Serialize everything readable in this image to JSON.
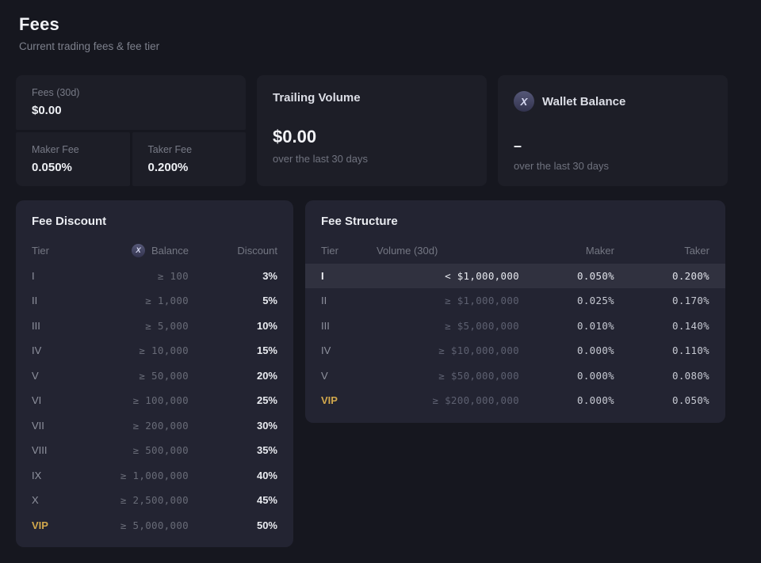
{
  "page": {
    "title": "Fees",
    "subtitle": "Current trading fees & fee tier"
  },
  "stats": {
    "fees_30d": {
      "label": "Fees (30d)",
      "value": "$0.00"
    },
    "maker_fee": {
      "label": "Maker Fee",
      "value": "0.050%"
    },
    "taker_fee": {
      "label": "Taker Fee",
      "value": "0.200%"
    },
    "trailing_volume": {
      "label": "Trailing Volume",
      "value": "$0.00",
      "caption": "over the last 30 days"
    },
    "wallet_balance": {
      "label": "Wallet Balance",
      "icon": "x-token-icon",
      "icon_glyph": "X",
      "value": "–",
      "caption": "over the last 30 days"
    }
  },
  "fee_discount": {
    "title": "Fee Discount",
    "columns": {
      "tier": "Tier",
      "balance": "Balance",
      "balance_icon_glyph": "X",
      "discount": "Discount"
    },
    "rows": [
      {
        "tier": "I",
        "balance": "≥ 100",
        "discount": "3%"
      },
      {
        "tier": "II",
        "balance": "≥ 1,000",
        "discount": "5%"
      },
      {
        "tier": "III",
        "balance": "≥ 5,000",
        "discount": "10%"
      },
      {
        "tier": "IV",
        "balance": "≥ 10,000",
        "discount": "15%"
      },
      {
        "tier": "V",
        "balance": "≥ 50,000",
        "discount": "20%"
      },
      {
        "tier": "VI",
        "balance": "≥ 100,000",
        "discount": "25%"
      },
      {
        "tier": "VII",
        "balance": "≥ 200,000",
        "discount": "30%"
      },
      {
        "tier": "VIII",
        "balance": "≥ 500,000",
        "discount": "35%"
      },
      {
        "tier": "IX",
        "balance": "≥ 1,000,000",
        "discount": "40%"
      },
      {
        "tier": "X",
        "balance": "≥ 2,500,000",
        "discount": "45%"
      },
      {
        "tier": "VIP",
        "balance": "≥ 5,000,000",
        "discount": "50%"
      }
    ]
  },
  "fee_structure": {
    "title": "Fee Structure",
    "columns": {
      "tier": "Tier",
      "volume": "Volume (30d)",
      "maker": "Maker",
      "taker": "Taker"
    },
    "rows": [
      {
        "tier": "I",
        "volume": "< $1,000,000",
        "maker": "0.050%",
        "taker": "0.200%",
        "current": true
      },
      {
        "tier": "II",
        "volume": "≥ $1,000,000",
        "maker": "0.025%",
        "taker": "0.170%"
      },
      {
        "tier": "III",
        "volume": "≥ $5,000,000",
        "maker": "0.010%",
        "taker": "0.140%"
      },
      {
        "tier": "IV",
        "volume": "≥ $10,000,000",
        "maker": "0.000%",
        "taker": "0.110%"
      },
      {
        "tier": "V",
        "volume": "≥ $50,000,000",
        "maker": "0.000%",
        "taker": "0.080%"
      },
      {
        "tier": "VIP",
        "volume": "≥ $200,000,000",
        "maker": "0.000%",
        "taker": "0.050%"
      }
    ]
  },
  "colors": {
    "background": "#16171f",
    "card": "#1d1e27",
    "panel": "#232432",
    "highlight_row": "#30313f",
    "accent_gold": "#d2a84c"
  }
}
